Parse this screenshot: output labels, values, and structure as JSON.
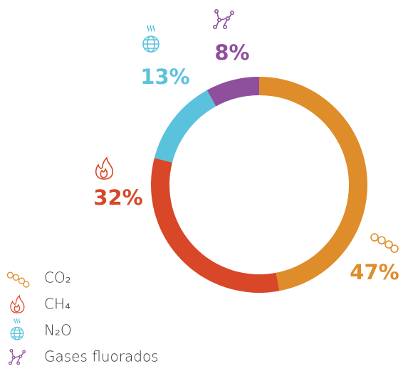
{
  "chart_data": {
    "type": "pie",
    "donut": true,
    "categories": [
      "CO₂",
      "CH₄",
      "N₂O",
      "Gases fluorados"
    ],
    "values": [
      47,
      32,
      13,
      8
    ],
    "value_labels": [
      "47%",
      "32%",
      "13%",
      "8%"
    ],
    "colors": [
      "#df8d2a",
      "#d84727",
      "#5bc2dd",
      "#8e4f9d"
    ],
    "legend": "bottom-left"
  }
}
